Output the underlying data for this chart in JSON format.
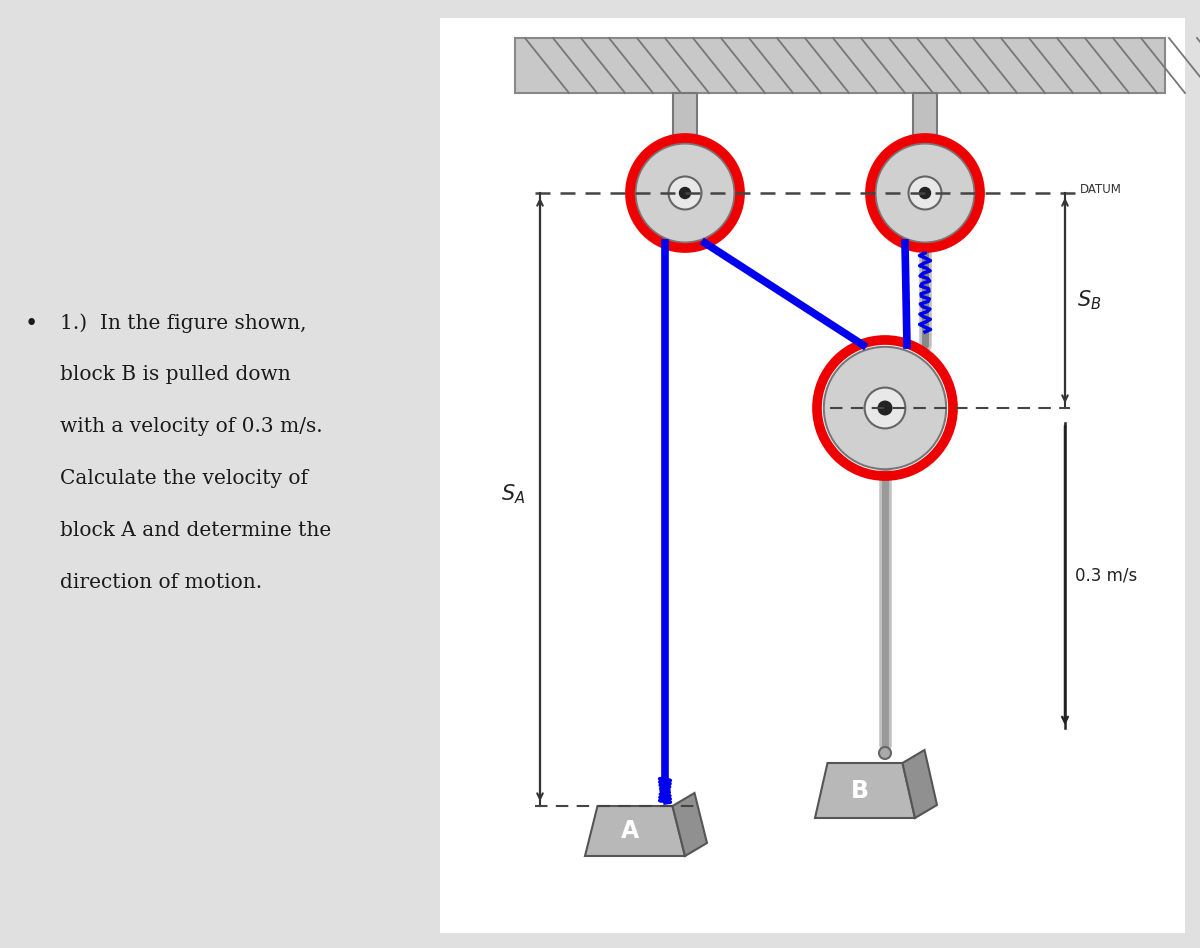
{
  "bg_color": "#e0e0e0",
  "panel_color": "#ffffff",
  "text_color": "#1a1a1a",
  "blue_rope": "#0000ee",
  "red_rim": "#ee0000",
  "gray_light": "#d0d0d0",
  "gray_med": "#b0b0b0",
  "gray_dark": "#888888",
  "gray_mount": "#c0c0c0",
  "block_face": "#b8b8b8",
  "block_side": "#909090",
  "ceiling_color": "#c8c8c8",
  "problem_text_line1": "1.)  In the figure shown,",
  "problem_text_line2": "block B is pulled down",
  "problem_text_line3": "with a velocity of 0.3 m/s.",
  "problem_text_line4": "Calculate the velocity of",
  "problem_text_line5": "block A and determine the",
  "problem_text_line6": "direction of motion.",
  "datum_label": "DATUM",
  "velocity_label": "0.3 m/s",
  "font_size_problem": 14.5
}
